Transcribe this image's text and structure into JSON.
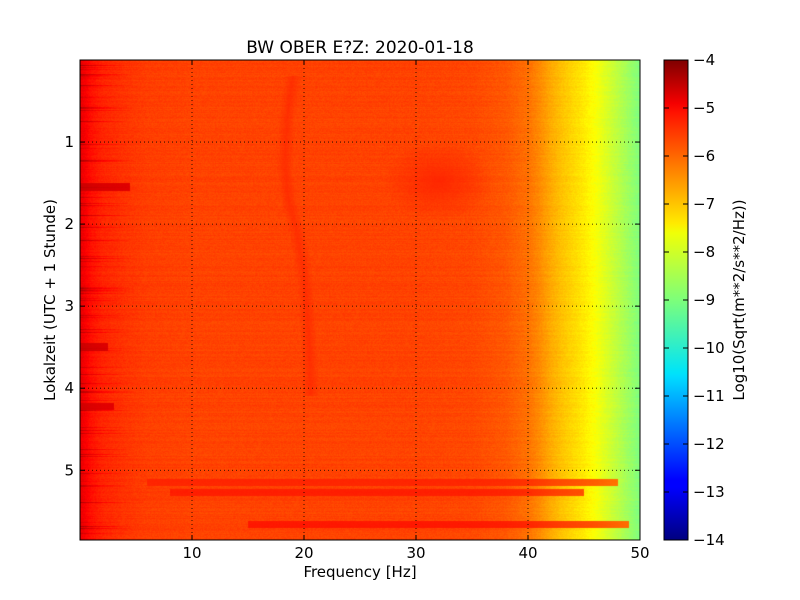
{
  "chart_data": {
    "type": "heatmap",
    "title": "BW OBER E?Z: 2020-01-18",
    "xlabel": "Frequency [Hz]",
    "ylabel": "Lokalzeit (UTC + 1 Stunde)",
    "xlim": [
      0,
      50
    ],
    "ylim": [
      5.85,
      0
    ],
    "x_ticks": [
      10,
      20,
      30,
      40,
      50
    ],
    "y_ticks": [
      1,
      2,
      3,
      4,
      5
    ],
    "grid": true,
    "colormap": "jet",
    "colorbar": {
      "label": "Log10(Sqrt(m**2/s**2/Hz))",
      "range": [
        -14,
        -4
      ],
      "ticks": [
        -4,
        -5,
        -6,
        -7,
        -8,
        -9,
        -10,
        -11,
        -12,
        -13,
        -14
      ]
    },
    "spectrum_profile": {
      "frequency_hz": [
        0,
        1,
        2,
        4,
        6,
        10,
        15,
        20,
        25,
        30,
        35,
        38,
        40,
        41,
        42,
        43,
        44,
        45,
        46,
        47,
        48,
        49,
        50
      ],
      "log10_amplitude": [
        -5.0,
        -5.4,
        -5.6,
        -5.75,
        -5.85,
        -5.9,
        -5.9,
        -5.9,
        -5.9,
        -5.9,
        -5.95,
        -6.1,
        -6.35,
        -6.6,
        -6.9,
        -7.15,
        -7.35,
        -7.55,
        -7.8,
        -8.1,
        -8.4,
        -8.7,
        -9.0
      ]
    },
    "features": [
      {
        "type": "line",
        "frequency_hz": [
          19.0,
          18.5,
          18.3,
          18.6,
          19.4,
          20.0,
          20.3,
          20.5,
          20.6
        ],
        "time_hours": [
          0.2,
          0.7,
          1.3,
          1.7,
          2.1,
          2.6,
          3.1,
          3.6,
          4.1
        ],
        "log10_amplitude": -5.55
      },
      {
        "type": "patch",
        "frequency_hz": [
          27,
          37
        ],
        "time_hours": [
          1.0,
          1.95
        ],
        "log10_amplitude": -5.55
      },
      {
        "type": "band",
        "time_hours": 5.15,
        "frequency_hz": [
          6,
          48
        ],
        "log10_amplitude": -5.5
      },
      {
        "type": "band",
        "time_hours": 5.27,
        "frequency_hz": [
          8,
          45
        ],
        "log10_amplitude": -5.4
      },
      {
        "type": "band",
        "time_hours": 5.66,
        "frequency_hz": [
          15,
          49
        ],
        "log10_amplitude": -5.3
      },
      {
        "type": "band",
        "time_hours": 1.55,
        "frequency_hz": [
          0,
          4.5
        ],
        "log10_amplitude": -4.6
      },
      {
        "type": "band",
        "time_hours": 3.5,
        "frequency_hz": [
          0,
          2.5
        ],
        "log10_amplitude": -4.6
      },
      {
        "type": "band",
        "time_hours": 4.22,
        "frequency_hz": [
          0,
          3.0
        ],
        "log10_amplitude": -4.7
      }
    ]
  }
}
